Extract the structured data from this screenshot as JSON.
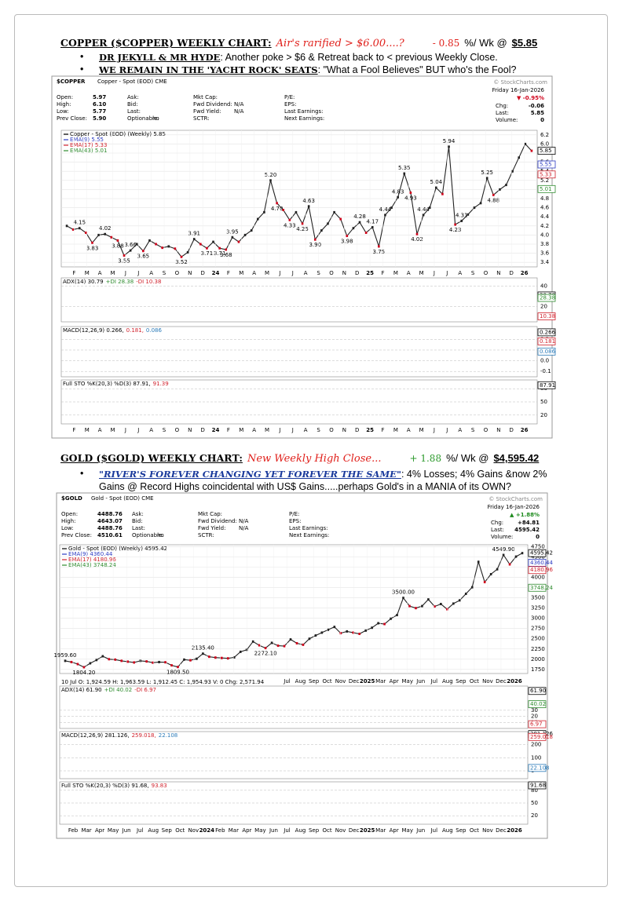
{
  "sections": [
    {
      "heading": "COPPER ($COPPER) WEEKLY CHART:",
      "headline": "Air's rarified > $6.00....?",
      "change": "- 0.85",
      "change_unit": "%/ Wk @",
      "price": "$5.85",
      "change_color": "#e0201b",
      "bullets": [
        {
          "lead": "DR JEKYLL & MR HYDE",
          "text": ": Another poke > $6 & Retreat back to < previous Weekly Close."
        },
        {
          "lead": "WE REMAIN IN THE 'YACHT ROCK' SEATS",
          "text": ": \"What a Fool Believes\"  BUT who's the Fool?"
        }
      ],
      "chart": {
        "type": "line",
        "symbol": "$COPPER",
        "name": "Copper - Spot (EOD) CME",
        "credit": "© StockCharts.com",
        "date": "Friday 16-Jan-2026",
        "day_change": "▼ -0.95%",
        "day_change_color": "#d0021b",
        "stats": [
          [
            "Open:",
            "High:",
            "Low:",
            "Prev Close:"
          ],
          [
            "5.97",
            "6.10",
            "5.77",
            "5.90"
          ],
          [
            "Ask:",
            "Bid:",
            "Last:",
            "Optionable:"
          ],
          [
            null,
            null,
            null,
            "no"
          ],
          [
            "Mkt Cap:",
            "Fwd Dividend:",
            "Fwd Yield:",
            "SCTR:"
          ],
          [
            null,
            "N/A",
            "N/A",
            null
          ],
          [
            "P/E:",
            "EPS:",
            "Last Earnings:",
            "Next Earnings:"
          ]
        ],
        "right_stats": [
          [
            "Chg:",
            "-0.06"
          ],
          [
            "Last:",
            "5.85"
          ],
          [
            "Volume:",
            "0"
          ]
        ],
        "legend": [
          {
            "text": "Copper - Spot (EOD) (Weekly) 5.85",
            "color": "#000000"
          },
          {
            "text": "EMA(9) 5.55",
            "color": "#2b3bc4"
          },
          {
            "text": "EMA(17) 5.33",
            "color": "#d0202b"
          },
          {
            "text": "EMA(43) 5.01",
            "color": "#2e8b2e"
          }
        ],
        "price": {
          "name": "Copper - Spot (EOD) (Weekly)",
          "color": "#222222",
          "values": [
            4.2,
            4.12,
            4.15,
            4.05,
            3.83,
            4.0,
            4.02,
            3.95,
            3.88,
            3.55,
            3.66,
            3.8,
            3.65,
            3.88,
            3.8,
            3.72,
            3.75,
            3.7,
            3.52,
            3.62,
            3.91,
            3.8,
            3.71,
            3.85,
            3.71,
            3.68,
            3.95,
            3.85,
            4.0,
            4.1,
            4.35,
            4.5,
            5.2,
            4.7,
            4.55,
            4.33,
            4.5,
            4.25,
            4.63,
            3.9,
            4.1,
            4.25,
            4.5,
            4.35,
            3.98,
            4.15,
            4.28,
            4.05,
            4.17,
            3.75,
            4.44,
            4.6,
            4.83,
            5.35,
            4.93,
            4.02,
            4.44,
            4.6,
            5.04,
            4.9,
            5.94,
            4.23,
            4.31,
            4.45,
            4.6,
            4.7,
            5.25,
            4.88,
            5.0,
            5.1,
            5.4,
            5.7,
            6.0,
            5.85
          ],
          "value_labels": [
            null,
            null,
            "4.15",
            null,
            "3.83",
            null,
            "4.02",
            null,
            "3.88",
            "3.55",
            "3.66",
            null,
            "3.65",
            null,
            null,
            null,
            null,
            null,
            "3.52",
            null,
            "3.91",
            null,
            "3.71",
            null,
            "3.71",
            "3.68",
            "3.95",
            null,
            null,
            null,
            null,
            null,
            "5.20",
            "4.70",
            null,
            "4.33",
            null,
            "4.25",
            "4.63",
            "3.90",
            null,
            null,
            null,
            null,
            "3.98",
            null,
            "4.28",
            null,
            "4.17",
            "3.75",
            "4.44",
            null,
            "4.83",
            "5.35",
            "4.93",
            "4.02",
            "4.44",
            null,
            "5.04",
            null,
            "5.94",
            "4.23",
            "4.31",
            null,
            null,
            null,
            "5.25",
            "4.88",
            null,
            null,
            null,
            null,
            null,
            null
          ]
        },
        "ylim": [
          3.3,
          6.3
        ],
        "yticks": [
          3.4,
          3.6,
          3.8,
          {
            "value": 4,
            "label": "4.0"
          },
          4.2,
          4.4,
          4.6,
          4.8,
          {
            "value": 5,
            "label": "5.0"
          },
          5.2,
          5.4,
          5.6,
          5.8,
          {
            "value": 6,
            "label": "6.0"
          },
          6.2
        ],
        "tags": [
          {
            "value": 5.85,
            "color": "#000000"
          },
          {
            "value": 5.55,
            "color": "#2b3bc4"
          },
          {
            "value": 5.33,
            "color": "#d0202b"
          },
          {
            "value": 5.01,
            "color": "#2e8b2e"
          }
        ],
        "xlabels": [
          "F",
          "M",
          "A",
          "M",
          "J",
          "J",
          "A",
          "S",
          "O",
          "N",
          "D",
          "24",
          "F",
          "M",
          "A",
          "M",
          "J",
          "J",
          "A",
          "S",
          "O",
          "N",
          "D",
          "25",
          "F",
          "M",
          "A",
          "M",
          "J",
          "J",
          "A",
          "S",
          "O",
          "N",
          "D",
          "26"
        ],
        "panels": [
          {
            "labels": [
              {
                "text": "ADX(14) 30.79",
                "color": "#000000"
              },
              {
                "text": "+DI 28.38",
                "color": "#2e8b2e"
              },
              {
                "text": "-DI 10.38",
                "color": "#d0202b"
              }
            ],
            "ylim": [
              5,
              48
            ],
            "yticks": [
              40,
              20
            ],
            "tags": [
              {
                "value": 30.79,
                "color": "#000000"
              },
              {
                "value": 28.38,
                "color": "#2e8b2e"
              },
              {
                "value": 10.38,
                "color": "#d0202b"
              }
            ]
          },
          {
            "labels": [
              {
                "text": "MACD(12,26,9) 0.266,",
                "color": "#000000"
              },
              {
                "text": "0.181,",
                "color": "#d0202b"
              },
              {
                "text": "0.086",
                "color": "#2a7ab8"
              }
            ],
            "ylim": [
              -0.15,
              0.32
            ],
            "yticks": [
              0.2,
              0.1,
              {
                "value": 0,
                "label": "0.0"
              },
              -0.1
            ],
            "tags": [
              {
                "value": 0.266,
                "color": "#000000"
              },
              {
                "value": 0.181,
                "color": "#d0202b"
              },
              {
                "value": 0.086,
                "color": "#2a7ab8"
              }
            ]
          },
          {
            "labels": [
              {
                "text": "Full STO %K(20,3) %D(3) 87.91,",
                "color": "#000000"
              },
              {
                "text": "91.39",
                "color": "#d0202b"
              }
            ],
            "ylim": [
              0,
              100
            ],
            "yticks": [
              80,
              50,
              20
            ],
            "tags": [
              {
                "value": 87.91,
                "color": "#000000"
              }
            ]
          }
        ]
      }
    },
    {
      "heading": "GOLD ($GOLD) WEEKLY CHART:",
      "headline": "New Weekly High Close...",
      "change": "+ 1.88",
      "change_unit": "%/ Wk @",
      "price": "$4,595.42",
      "change_color": "#2e9b2e",
      "bullets": [
        {
          "lead": "\"RIVER'S FOREVER CHANGING YET FOREVER THE SAME\"",
          "text": ":  4% Losses; 4% Gains &now 2% Gains @ Record Highs coincidental with US$ Gains.....perhaps Gold's in a MANIA of its OWN?"
        }
      ],
      "chart": {
        "type": "line",
        "symbol": "$GOLD",
        "name": "Gold - Spot (EOD) CME",
        "credit": "© StockCharts.com",
        "date": "Friday 16-Jan-2026",
        "day_change": "▲ +1.88%",
        "day_change_color": "#1e8b1e",
        "stats": [
          [
            "Open:",
            "High:",
            "Low:",
            "Prev Close:"
          ],
          [
            "4488.76",
            "4643.07",
            "4488.76",
            "4510.61"
          ],
          [
            "Ask:",
            "Bid:",
            "Last:",
            "Optionable:"
          ],
          [
            null,
            null,
            null,
            "no"
          ],
          [
            "Mkt Cap:",
            "Fwd Dividend:",
            "Fwd Yield:",
            "SCTR:"
          ],
          [
            null,
            "N/A",
            "N/A",
            null
          ],
          [
            "P/E:",
            "EPS:",
            "Last Earnings:",
            "Next Earnings:"
          ]
        ],
        "right_stats": [
          [
            "Chg:",
            "+84.81"
          ],
          [
            "Last:",
            "4595.42"
          ],
          [
            "Volume:",
            "0"
          ]
        ],
        "legend": [
          {
            "text": "Gold - Spot (EOD) (Weekly) 4595.42",
            "color": "#000000"
          },
          {
            "text": "EMA(9) 4360.44",
            "color": "#2b3bc4"
          },
          {
            "text": "EMA(17) 4180.96",
            "color": "#d0202b"
          },
          {
            "text": "EMA(43) 3748.24",
            "color": "#2e8b2e"
          }
        ],
        "price": {
          "name": "Gold - Spot (EOD) (Weekly)",
          "color": "#222222",
          "values": [
            1959.6,
            1930,
            1880,
            1804.2,
            1900,
            1980,
            2072.19,
            2000,
            1990,
            1960,
            1940,
            1920,
            1960,
            1945,
            1915,
            1930,
            1925,
            1850,
            1809.5,
            1990,
            1973.12,
            2010,
            2135.4,
            2060,
            2040,
            2030,
            2020,
            2045,
            2180,
            2230,
            2431.55,
            2340,
            2272.1,
            2400,
            2330,
            2320,
            2483.68,
            2390,
            2353.08,
            2500,
            2580,
            2650,
            2720,
            2790.07,
            2636.85,
            2680,
            2650,
            2620,
            2700,
            2770,
            2880,
            2860,
            2990,
            3080,
            3500,
            3300,
            3250,
            3300,
            3462.27,
            3290,
            3350,
            3223.15,
            3360,
            3440,
            3600,
            3760,
            4381.58,
            3886.69,
            4080,
            4200,
            4549.9,
            4320,
            4510,
            4595.42
          ],
          "value_labels": [
            "1959.60",
            null,
            null,
            "1804.20",
            null,
            null,
            null,
            null,
            null,
            null,
            null,
            null,
            null,
            null,
            null,
            null,
            null,
            null,
            "1809.50",
            null,
            null,
            null,
            "2135.40",
            null,
            null,
            null,
            null,
            null,
            null,
            null,
            null,
            null,
            "2272.10",
            null,
            null,
            null,
            null,
            null,
            null,
            null,
            null,
            null,
            null,
            null,
            null,
            null,
            null,
            null,
            null,
            null,
            null,
            null,
            null,
            null,
            "3500.00",
            null,
            null,
            null,
            null,
            null,
            null,
            null,
            null,
            null,
            null,
            null,
            null,
            null,
            null,
            null,
            "4549.90",
            null,
            null,
            null
          ]
        },
        "ylim": [
          1650,
          4800
        ],
        "yticks": [
          1750,
          2000,
          2250,
          2500,
          2750,
          3000,
          3250,
          3500,
          3750,
          4000,
          4250,
          4500,
          4750
        ],
        "tags": [
          {
            "value": 4595.42,
            "color": "#000000"
          },
          {
            "value": 4360.44,
            "color": "#2b3bc4"
          },
          {
            "value": 4180.96,
            "color": "#d0202b"
          },
          {
            "value": 3748.24,
            "color": "#2e8b2e"
          }
        ],
        "info": "10 Jul O: 1,924.59 H: 1,963.59 L: 1,912.45 C: 1,954.93 V: 0 Chg: 2,571.94",
        "xlabels": [
          "Feb",
          "Mar",
          "Apr",
          "May",
          "Jun",
          "Jul",
          "Aug",
          "Sep",
          "Oct",
          "Nov",
          "2024",
          "Feb",
          "Mar",
          "Apr",
          "May",
          "Jun",
          "Jul",
          "Aug",
          "Sep",
          "Oct",
          "Nov",
          "Dec",
          "2025",
          "Mar",
          "Apr",
          "May",
          "Jun",
          "Jul",
          "Aug",
          "Sep",
          "Oct",
          "Nov",
          "Dec",
          "2026"
        ],
        "panels": [
          {
            "labels": [
              {
                "text": "ADX(14) 61.90",
                "color": "#000000"
              },
              {
                "text": "+DI 40.02",
                "color": "#2e8b2e"
              },
              {
                "text": "-DI 6.97",
                "color": "#d0202b"
              }
            ],
            "ylim": [
              0,
              70
            ],
            "yticks": [
              30,
              20,
              10
            ],
            "tags": [
              {
                "value": 61.9,
                "label": "61.90",
                "color": "#000000"
              },
              {
                "value": 40.02,
                "color": "#2e8b2e"
              },
              {
                "value": 6.97,
                "color": "#d0202b"
              }
            ]
          },
          {
            "labels": [
              {
                "text": "MACD(12,26,9) 281.126,",
                "color": "#000000"
              },
              {
                "text": "259.018,",
                "color": "#d0202b"
              },
              {
                "text": "22.108",
                "color": "#2a7ab8"
              }
            ],
            "ylim": [
              -60,
              300
            ],
            "yticks": [
              200,
              100,
              0
            ],
            "tags": [
              {
                "value": 281.126,
                "color": "#000000"
              },
              {
                "value": 259.018,
                "color": "#d0202b"
              },
              {
                "value": 22.108,
                "color": "#2a7ab8"
              }
            ]
          },
          {
            "labels": [
              {
                "text": "Full STO %K(20,3) %D(3) 91.68,",
                "color": "#000000"
              },
              {
                "text": "93.83",
                "color": "#d0202b"
              }
            ],
            "ylim": [
              0,
              100
            ],
            "yticks": [
              80,
              50,
              20
            ],
            "tags": [
              {
                "value": 91.68,
                "color": "#000000"
              }
            ]
          }
        ]
      }
    }
  ]
}
